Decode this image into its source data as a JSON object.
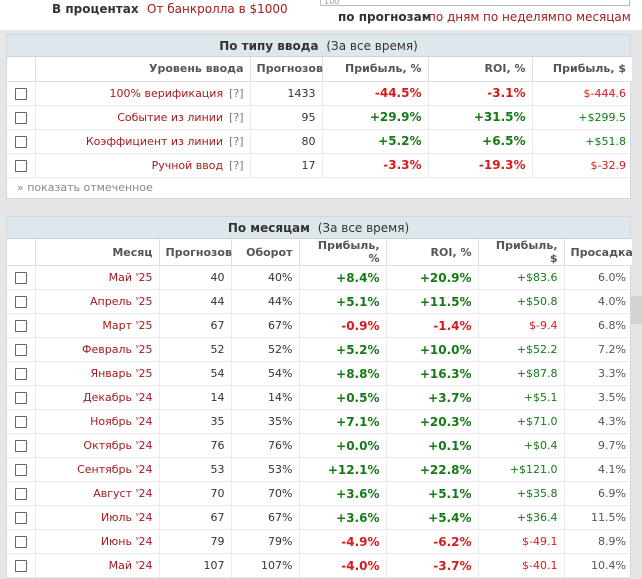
{
  "top_options": {
    "percent": "В процентах",
    "bankroll": "От банкролла в $1000"
  },
  "top_input": "100",
  "periods": [
    "по прогнозам",
    "по дням",
    "по неделям",
    "по месяцам"
  ],
  "entry_panel": {
    "title": "По типу ввода",
    "subtitle": "(За все время)",
    "columns": [
      "Уровень ввода",
      "Прогнозов",
      "Прибыль, %",
      "ROI, %",
      "Прибыль, $"
    ],
    "rows": [
      {
        "label": "100% верификация",
        "help": "[?]",
        "count": "1433",
        "profit_pct": "-44.5%",
        "roi": "-3.1%",
        "profit_usd": "$-444.6",
        "sign": "neg"
      },
      {
        "label": "Событие из линии",
        "help": "[?]",
        "count": "95",
        "profit_pct": "+29.9%",
        "roi": "+31.5%",
        "profit_usd": "+$299.5",
        "sign": "pos"
      },
      {
        "label": "Коэффициент из линии",
        "help": "[?]",
        "count": "80",
        "profit_pct": "+5.2%",
        "roi": "+6.5%",
        "profit_usd": "+$51.8",
        "sign": "pos"
      },
      {
        "label": "Ручной ввод",
        "help": "[?]",
        "count": "17",
        "profit_pct": "-3.3%",
        "roi": "-19.3%",
        "profit_usd": "$-32.9",
        "sign": "neg"
      }
    ],
    "show_selected": "» показать отмеченное"
  },
  "month_panel": {
    "title": "По месяцам",
    "subtitle": "(За все время)",
    "columns": [
      "Месяц",
      "Прогнозов",
      "Оборот",
      "Прибыль, %",
      "ROI, %",
      "Прибыль, $",
      "Просадка"
    ],
    "rows": [
      {
        "month": "Май '25",
        "count": "40",
        "turnover": "40%",
        "profit_pct": "+8.4%",
        "roi": "+20.9%",
        "profit_usd": "+$83.6",
        "drawdown": "6.0%",
        "sign": "pos"
      },
      {
        "month": "Апрель '25",
        "count": "44",
        "turnover": "44%",
        "profit_pct": "+5.1%",
        "roi": "+11.5%",
        "profit_usd": "+$50.8",
        "drawdown": "4.0%",
        "sign": "pos"
      },
      {
        "month": "Март '25",
        "count": "67",
        "turnover": "67%",
        "profit_pct": "-0.9%",
        "roi": "-1.4%",
        "profit_usd": "$-9.4",
        "drawdown": "6.8%",
        "sign": "neg"
      },
      {
        "month": "Февраль '25",
        "count": "52",
        "turnover": "52%",
        "profit_pct": "+5.2%",
        "roi": "+10.0%",
        "profit_usd": "+$52.2",
        "drawdown": "7.2%",
        "sign": "pos"
      },
      {
        "month": "Январь '25",
        "count": "54",
        "turnover": "54%",
        "profit_pct": "+8.8%",
        "roi": "+16.3%",
        "profit_usd": "+$87.8",
        "drawdown": "3.3%",
        "sign": "pos"
      },
      {
        "month": "Декабрь '24",
        "count": "14",
        "turnover": "14%",
        "profit_pct": "+0.5%",
        "roi": "+3.7%",
        "profit_usd": "+$5.1",
        "drawdown": "3.5%",
        "sign": "pos"
      },
      {
        "month": "Ноябрь '24",
        "count": "35",
        "turnover": "35%",
        "profit_pct": "+7.1%",
        "roi": "+20.3%",
        "profit_usd": "+$71.0",
        "drawdown": "4.3%",
        "sign": "pos"
      },
      {
        "month": "Октябрь '24",
        "count": "76",
        "turnover": "76%",
        "profit_pct": "+0.0%",
        "roi": "+0.1%",
        "profit_usd": "+$0.4",
        "drawdown": "9.7%",
        "sign": "pos"
      },
      {
        "month": "Сентябрь '24",
        "count": "53",
        "turnover": "53%",
        "profit_pct": "+12.1%",
        "roi": "+22.8%",
        "profit_usd": "+$121.0",
        "drawdown": "4.1%",
        "sign": "pos"
      },
      {
        "month": "Август '24",
        "count": "70",
        "turnover": "70%",
        "profit_pct": "+3.6%",
        "roi": "+5.1%",
        "profit_usd": "+$35.8",
        "drawdown": "6.9%",
        "sign": "pos"
      },
      {
        "month": "Июль '24",
        "count": "67",
        "turnover": "67%",
        "profit_pct": "+3.6%",
        "roi": "+5.4%",
        "profit_usd": "+$36.4",
        "drawdown": "11.5%",
        "sign": "pos"
      },
      {
        "month": "Июнь '24",
        "count": "79",
        "turnover": "79%",
        "profit_pct": "-4.9%",
        "roi": "-6.2%",
        "profit_usd": "$-49.1",
        "drawdown": "8.9%",
        "sign": "neg"
      },
      {
        "month": "Май '24",
        "count": "107",
        "turnover": "107%",
        "profit_pct": "-4.0%",
        "roi": "-3.7%",
        "profit_usd": "$-40.1",
        "drawdown": "10.4%",
        "sign": "neg"
      }
    ]
  },
  "colors": {
    "positive": "#157a15",
    "negative": "#d41b1b",
    "link": "#a31b1b",
    "header_bg": "#dde7ec"
  }
}
